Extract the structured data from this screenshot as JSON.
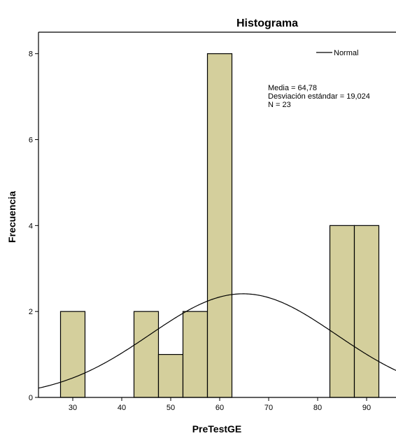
{
  "chart_data": {
    "type": "bar",
    "title": "Histograma",
    "xlabel": "PreTestGE",
    "ylabel": "Frecuencia",
    "xlim": [
      23,
      96
    ],
    "ylim": [
      0,
      8.5
    ],
    "x_ticks": [
      30,
      40,
      50,
      60,
      70,
      80,
      90
    ],
    "y_ticks": [
      0,
      2,
      4,
      6,
      8
    ],
    "bin_width": 5,
    "bins": [
      {
        "start": 27.5,
        "end": 32.5,
        "count": 2
      },
      {
        "start": 42.5,
        "end": 47.5,
        "count": 2
      },
      {
        "start": 47.5,
        "end": 52.5,
        "count": 1
      },
      {
        "start": 52.5,
        "end": 57.5,
        "count": 2
      },
      {
        "start": 57.5,
        "end": 62.5,
        "count": 8
      },
      {
        "start": 82.5,
        "end": 87.5,
        "count": 4
      },
      {
        "start": 87.5,
        "end": 92.5,
        "count": 4
      }
    ],
    "normal_curve": {
      "name": "Normal",
      "mean": 64.78,
      "sd": 19.024,
      "n": 23
    },
    "legend": {
      "label": "Normal",
      "position": "top-right"
    },
    "stats": [
      "Media = 64,78",
      "Desviación estándar = 19,024",
      "N = 23"
    ],
    "colors": {
      "bar_fill": "#d4cf9c",
      "bar_stroke": "#000000",
      "curve": "#000000"
    }
  }
}
